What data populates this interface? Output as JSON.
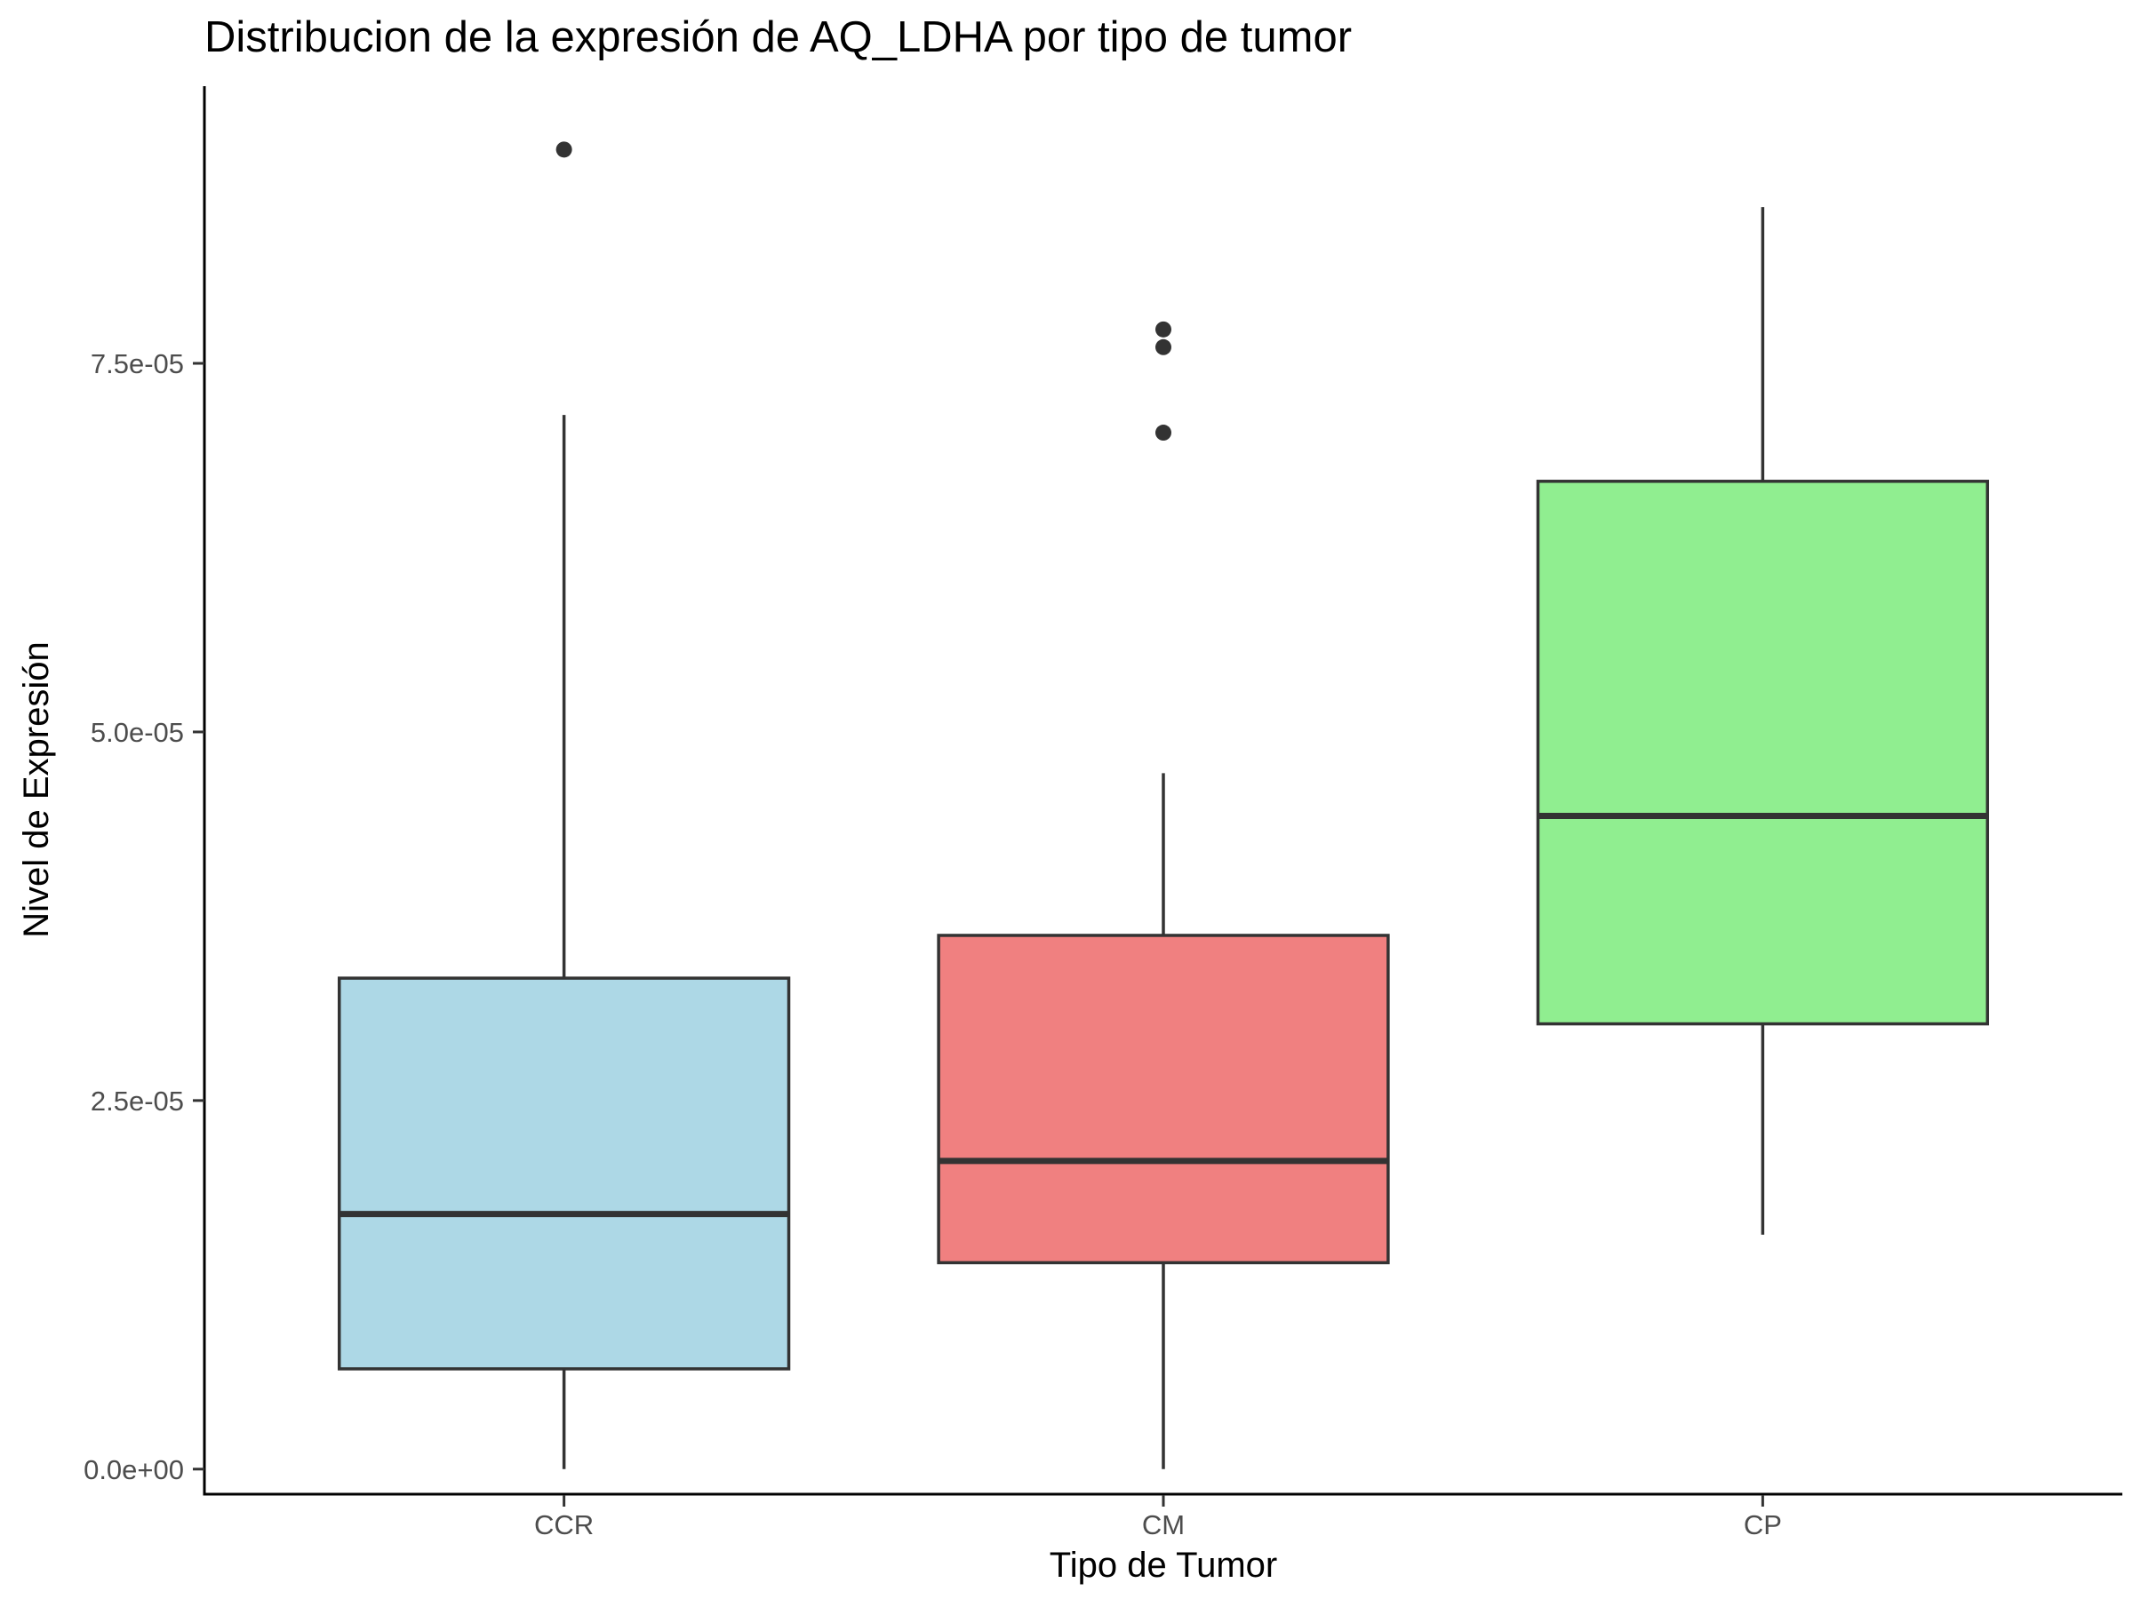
{
  "chart_data": {
    "type": "boxplot",
    "title": "Distribucion de la expresión de AQ_LDHA por tipo de tumor",
    "xlabel": "Tipo de Tumor",
    "ylabel": "Nivel de Expresión",
    "ylim": [
      -1.7e-06,
      9.38e-05
    ],
    "yticks": [
      0,
      2.5e-05,
      5e-05,
      7.5e-05
    ],
    "ytick_labels": [
      "0.0e+00",
      "2.5e-05",
      "5.0e-05",
      "7.5e-05"
    ],
    "grid": false,
    "legend": "none",
    "categories": [
      "CCR",
      "CM",
      "CP"
    ],
    "boxes": [
      {
        "category": "CCR",
        "color": "#add8e6",
        "whisker_low": 0.0,
        "q1": 6.8e-06,
        "median": 1.73e-05,
        "q3": 3.33e-05,
        "whisker_high": 7.15e-05,
        "outliers": [
          8.95e-05
        ]
      },
      {
        "category": "CM",
        "color": "#f08080",
        "whisker_low": 0.0,
        "q1": 1.4e-05,
        "median": 2.09e-05,
        "q3": 3.62e-05,
        "whisker_high": 4.72e-05,
        "outliers": [
          7.73e-05,
          7.61e-05,
          7.03e-05
        ]
      },
      {
        "category": "CP",
        "color": "#90ee90",
        "whisker_low": 1.59e-05,
        "q1": 3.02e-05,
        "median": 4.43e-05,
        "q3": 6.7e-05,
        "whisker_high": 8.56e-05,
        "outliers": []
      }
    ]
  }
}
